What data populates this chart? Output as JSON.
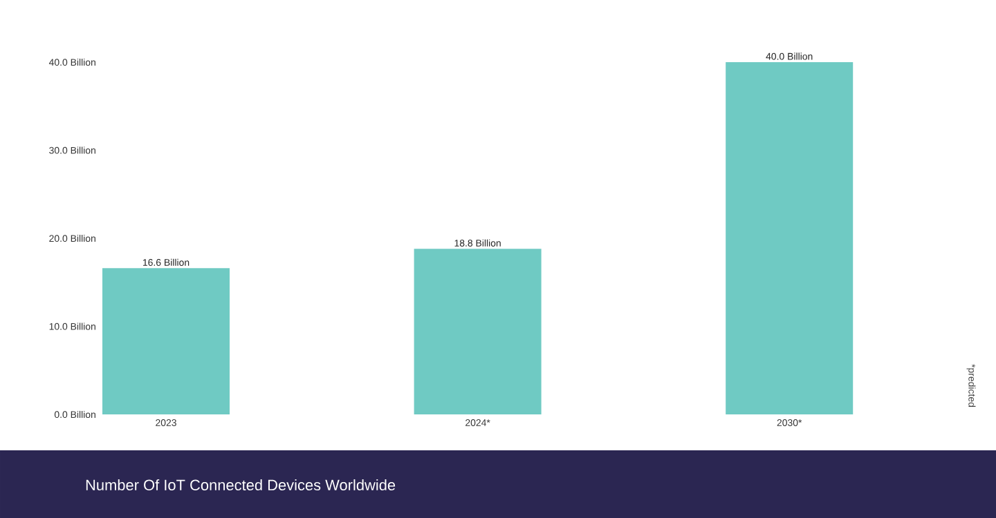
{
  "chart_data": {
    "type": "bar",
    "title": "Number Of IoT Connected Devices Worldwide",
    "categories": [
      "2023",
      "2024*",
      "2030*"
    ],
    "values": [
      16.6,
      18.8,
      40.0
    ],
    "value_labels": [
      "16.6 Billion",
      "18.8 Billion",
      "40.0 Billion"
    ],
    "color": "#6fcac3",
    "ylim": [
      0,
      40
    ],
    "yticks": [
      {
        "value": 0,
        "label": "0.0 Billion"
      },
      {
        "value": 10,
        "label": "10.0 Billion"
      },
      {
        "value": 20,
        "label": "20.0 Billion"
      },
      {
        "value": 30,
        "label": "30.0 Billion"
      },
      {
        "value": 40,
        "label": "40.0 Billion"
      }
    ],
    "grid": false,
    "annotations": [
      "*predicted"
    ]
  }
}
